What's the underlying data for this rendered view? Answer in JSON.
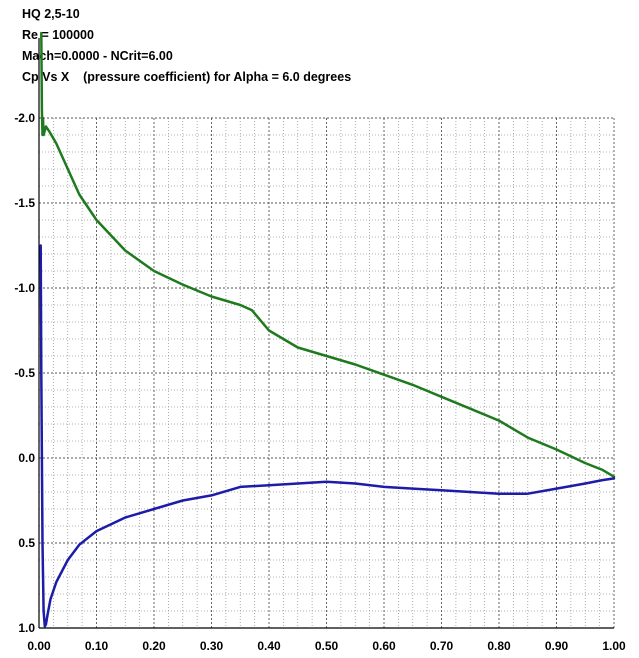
{
  "header": {
    "line1": "HQ 2,5-10",
    "line2": "Re = 100000",
    "line3": "Mach=0.0000 - NCrit=6.00",
    "line4": "Cp Vs X    (pressure coefficient) for Alpha = 6.0 degrees"
  },
  "chart_data": {
    "type": "line",
    "xlabel": "",
    "ylabel": "",
    "xlim": [
      0,
      1.0
    ],
    "ylim": [
      -2.0,
      1.0
    ],
    "y_inverted": true,
    "grid": true,
    "x_ticks": [
      "0.00",
      "0.10",
      "0.20",
      "0.30",
      "0.40",
      "0.50",
      "0.60",
      "0.70",
      "0.80",
      "0.90",
      "1.00"
    ],
    "y_ticks": [
      "-2.0",
      "-1.5",
      "-1.0",
      "-0.5",
      "0.0",
      "0.5",
      "1.0"
    ],
    "series": [
      {
        "name": "",
        "color": "#1f7a1f",
        "x": [
          0.004,
          0.005,
          0.006,
          0.007,
          0.008,
          0.012,
          0.018,
          0.03,
          0.05,
          0.07,
          0.1,
          0.15,
          0.2,
          0.25,
          0.3,
          0.35,
          0.37,
          0.4,
          0.45,
          0.5,
          0.55,
          0.6,
          0.65,
          0.7,
          0.75,
          0.8,
          0.85,
          0.9,
          0.95,
          0.98,
          1.0
        ],
        "y": [
          -2.5,
          -2.05,
          -1.9,
          -2.0,
          -1.9,
          -1.95,
          -1.92,
          -1.85,
          -1.7,
          -1.55,
          -1.4,
          -1.22,
          -1.1,
          -1.02,
          -0.95,
          -0.9,
          -0.87,
          -0.75,
          -0.65,
          -0.6,
          -0.55,
          -0.49,
          -0.43,
          -0.36,
          -0.29,
          -0.22,
          -0.12,
          -0.05,
          0.03,
          0.07,
          0.11
        ]
      },
      {
        "name": "",
        "color": "#1c1ca8",
        "x": [
          0.003,
          0.004,
          0.006,
          0.008,
          0.01,
          0.012,
          0.015,
          0.02,
          0.03,
          0.05,
          0.07,
          0.1,
          0.15,
          0.2,
          0.25,
          0.3,
          0.35,
          0.4,
          0.45,
          0.5,
          0.55,
          0.6,
          0.65,
          0.7,
          0.75,
          0.8,
          0.85,
          0.9,
          0.95,
          0.98,
          1.0
        ],
        "y": [
          -1.25,
          -0.5,
          0.5,
          0.9,
          0.99,
          0.98,
          0.92,
          0.83,
          0.73,
          0.6,
          0.51,
          0.43,
          0.35,
          0.3,
          0.25,
          0.22,
          0.17,
          0.16,
          0.15,
          0.14,
          0.15,
          0.17,
          0.18,
          0.19,
          0.2,
          0.21,
          0.21,
          0.18,
          0.15,
          0.13,
          0.12
        ]
      }
    ]
  }
}
